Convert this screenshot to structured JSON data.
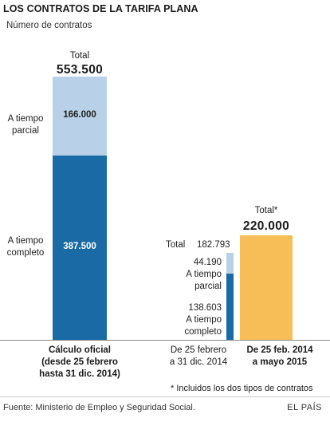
{
  "title": "LOS CONTRATOS DE LA TARIFA PLANA",
  "subtitle": "Número de contratos",
  "colors": {
    "full_time": "#1a6aa5",
    "part_time": "#b8d1e8",
    "total_period": "#f7bd56"
  },
  "chart_data": {
    "type": "bar",
    "stacked": true,
    "title": "LOS CONTRATOS DE LA TARIFA PLANA",
    "ylabel": "Número de contratos",
    "bars": [
      {
        "category": "Cálculo oficial (desde 25 febrero hasta 31 dic. 2014)",
        "total_caption": "Total",
        "total_label": "553.500",
        "total": 553500,
        "segments": [
          {
            "name": "A tiempo completo",
            "value": 387500,
            "label": "387.500"
          },
          {
            "name": "A tiempo parcial",
            "value": 166000,
            "label": "166.000"
          }
        ]
      },
      {
        "category": "De 25 febrero a 31 dic. 2014",
        "total_caption": "Total",
        "total_label": "182.793",
        "total": 182793,
        "segments": [
          {
            "name": "A tiempo completo",
            "value": 138603,
            "label": "138.603"
          },
          {
            "name": "A tiempo parcial",
            "value": 44190,
            "label": "44.190"
          }
        ]
      },
      {
        "category": "De 25 feb. 2014 a mayo 2015",
        "total_caption": "Total*",
        "total_label": "220.000",
        "total": 220000,
        "segments": [
          {
            "name": "Total",
            "value": 220000
          }
        ]
      }
    ],
    "footnote": "* Incluidos los dos tipos de contratos"
  },
  "labels": {
    "full_time_1": "A tiempo",
    "full_time_2": "completo",
    "part_time_1": "A tiempo",
    "part_time_2": "parcial",
    "cat1_line1": "Cálculo oficial",
    "cat1_line2": "(desde 25 febrero",
    "cat1_line3": "hasta 31 dic. 2014)",
    "cat2_line1": "De 25 febrero",
    "cat2_line2": "a 31 dic. 2014",
    "cat3_line1": "De 25 feb. 2014",
    "cat3_line2": "a mayo 2015"
  },
  "source": "Fuente: Ministerio de Empleo y Seguridad Social.",
  "brand": "EL PAÍS"
}
